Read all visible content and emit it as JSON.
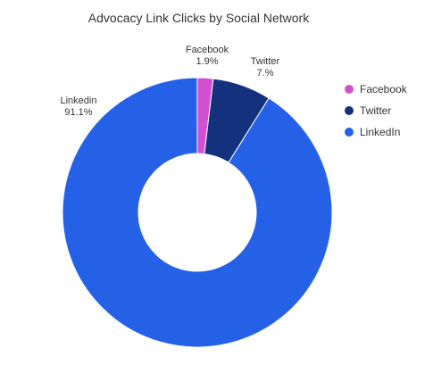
{
  "chart_data": {
    "type": "pie",
    "title": "Advocacy Link Clicks by Social Network",
    "donut": true,
    "legend_position": "right",
    "slices": [
      {
        "name": "Facebook",
        "value": 1.9,
        "label": "1.9%",
        "color": "#d34fd2"
      },
      {
        "name": "Twitter",
        "value": 7.0,
        "label": "7.%",
        "color": "#13317c"
      },
      {
        "name": "Linkedin",
        "value": 91.1,
        "label": "91.1%",
        "color": "#2461e7"
      }
    ],
    "legend": [
      {
        "name": "Facebook",
        "color": "#d34fd2"
      },
      {
        "name": "Twitter",
        "color": "#13317c"
      },
      {
        "name": "LinkedIn",
        "color": "#2461e7"
      }
    ]
  }
}
